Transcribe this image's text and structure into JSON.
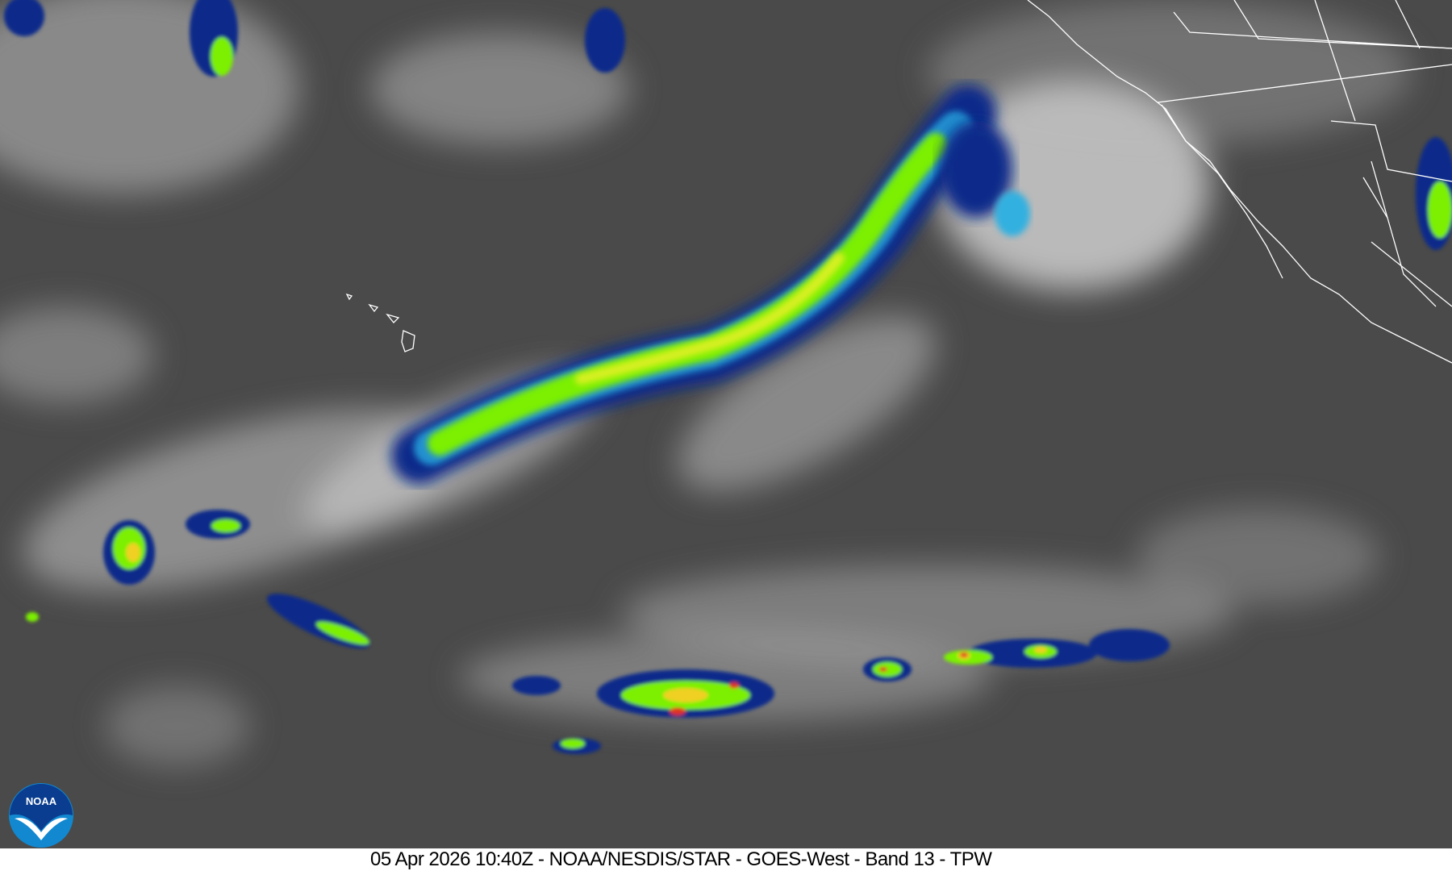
{
  "caption": {
    "timestamp": "05 Apr 2026 10:40Z",
    "text": "05 Apr 2026 10:40Z - NOAA/NESDIS/STAR - GOES-West - Band 13 - TPW"
  },
  "logo": {
    "text": "NOAA",
    "colors": {
      "outer": "#0a3d8f",
      "inner": "#1188d0",
      "bird": "#ffffff"
    }
  },
  "imagery": {
    "satellite": "GOES-West",
    "band": "Band 13",
    "product": "TPW",
    "colors": {
      "background": "#4a4a4a",
      "cloud": "#d8d8d8",
      "moisture_low": "#0a2a8a",
      "moisture_mid": "#20c0e0",
      "moisture_high": "#7cf000",
      "moisture_peak": "#f0f020",
      "extreme": "#e03020",
      "borders": "#ffffff"
    }
  }
}
